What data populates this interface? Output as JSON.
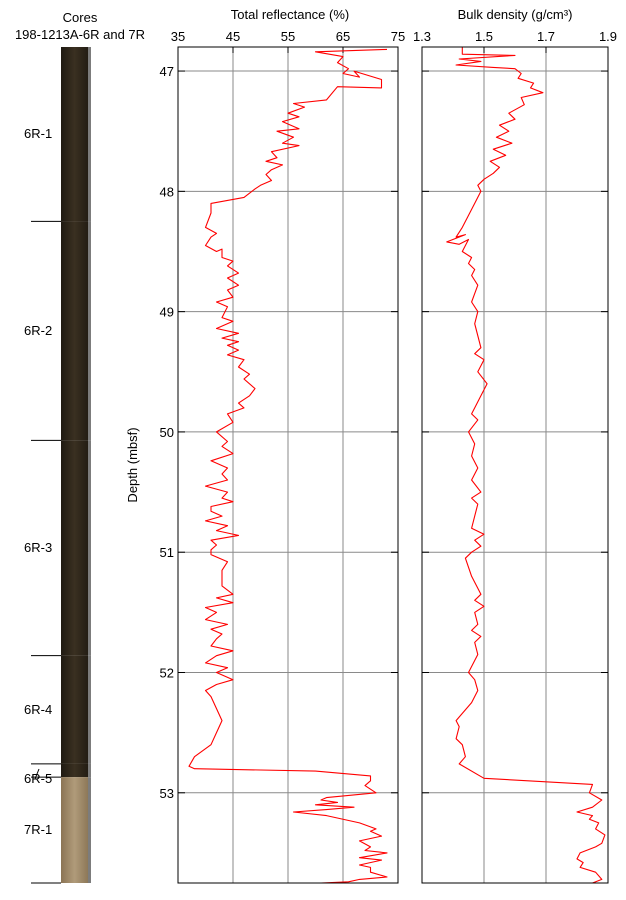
{
  "core_column": {
    "title_line1": "Cores",
    "title_line2": "198-1213A-6R and 7R",
    "sections": [
      {
        "label": "6R-1",
        "top": 46.8,
        "bottom": 48.25
      },
      {
        "label": "6R-2",
        "top": 48.25,
        "bottom": 50.07
      },
      {
        "label": "6R-3",
        "top": 50.07,
        "bottom": 51.86
      },
      {
        "label": "6R-4",
        "top": 51.86,
        "bottom": 52.76
      },
      {
        "label": "6R-5",
        "top": 52.76,
        "bottom": 52.87
      },
      {
        "label": "7R-1",
        "top": 52.87,
        "bottom": 53.75
      }
    ]
  },
  "chart_data": [
    {
      "type": "line",
      "title": "Total reflectance (%)",
      "ylabel": "Depth (mbsf)",
      "xlim": [
        35,
        75
      ],
      "ylim": [
        46.8,
        53.75
      ],
      "xticks": [
        35,
        45,
        55,
        65,
        75
      ],
      "yticks": [
        47,
        48,
        49,
        50,
        51,
        52,
        53
      ],
      "y_inverted": true,
      "grid": true,
      "color": "#ff0000",
      "series": [
        {
          "x": [
            73,
            60,
            65,
            64,
            66,
            65,
            68,
            67,
            72,
            72,
            64,
            62,
            56,
            58,
            55,
            57,
            54,
            57,
            53,
            56,
            54,
            57,
            52,
            53,
            51,
            54,
            52,
            51,
            52,
            50,
            49,
            47,
            41,
            41,
            40,
            42,
            41,
            40,
            42,
            43,
            43,
            45,
            44,
            46,
            44,
            46,
            44,
            45,
            42,
            44,
            43,
            45,
            42,
            46,
            43,
            46,
            44,
            46,
            44,
            47,
            46,
            48,
            47,
            49,
            48,
            46,
            47,
            44,
            45,
            42,
            44,
            43,
            45,
            41,
            44,
            43,
            44,
            40,
            44,
            43,
            45,
            41,
            41,
            43,
            40,
            44,
            42,
            46,
            41,
            42,
            41,
            41,
            44,
            43,
            43,
            45,
            42,
            45,
            40,
            42,
            40,
            44,
            41,
            43,
            42,
            41,
            45,
            42,
            40,
            44,
            42,
            45,
            42,
            40,
            41,
            42,
            43,
            42,
            41,
            38,
            37,
            38,
            60,
            70,
            70,
            69,
            71,
            62,
            61,
            64,
            60,
            67,
            62,
            56,
            62,
            68,
            71,
            70,
            72,
            68,
            70,
            69,
            73,
            68,
            72,
            68,
            70,
            70,
            73,
            68,
            66,
            61
          ],
          "y": [
            46.82,
            46.84,
            46.88,
            46.93,
            46.98,
            47.02,
            47.05,
            47.0,
            47.07,
            47.14,
            47.13,
            47.24,
            47.27,
            47.3,
            47.35,
            47.38,
            47.42,
            47.48,
            47.5,
            47.55,
            47.6,
            47.62,
            47.67,
            47.72,
            47.75,
            47.78,
            47.82,
            47.86,
            47.91,
            47.95,
            47.98,
            48.05,
            48.1,
            48.18,
            48.3,
            48.35,
            48.38,
            48.45,
            48.5,
            48.48,
            48.55,
            48.58,
            48.62,
            48.68,
            48.72,
            48.78,
            48.82,
            48.88,
            48.92,
            48.96,
            49.05,
            49.08,
            49.14,
            49.18,
            49.22,
            49.25,
            49.28,
            49.32,
            49.36,
            49.4,
            49.46,
            49.52,
            49.56,
            49.64,
            49.7,
            49.76,
            49.8,
            49.85,
            49.92,
            50.0,
            50.08,
            50.12,
            50.18,
            50.24,
            50.3,
            50.35,
            50.4,
            50.45,
            50.5,
            50.55,
            50.58,
            50.62,
            50.66,
            50.7,
            50.74,
            50.78,
            50.82,
            50.86,
            50.9,
            50.94,
            50.98,
            51.02,
            51.08,
            51.15,
            51.28,
            51.35,
            51.38,
            51.42,
            51.46,
            51.5,
            51.56,
            51.6,
            51.64,
            51.68,
            51.72,
            51.78,
            51.82,
            51.86,
            51.92,
            51.96,
            52.0,
            52.06,
            52.1,
            52.15,
            52.2,
            52.3,
            52.4,
            52.5,
            52.6,
            52.7,
            52.78,
            52.8,
            52.82,
            52.86,
            52.9,
            52.94,
            53.0,
            53.04,
            53.06,
            53.08,
            53.1,
            53.12,
            53.14,
            53.16,
            53.19,
            53.25,
            53.3,
            53.32,
            53.36,
            53.4,
            53.45,
            53.48,
            53.5,
            53.54,
            53.56,
            53.6,
            53.62,
            53.66,
            53.7,
            53.72,
            53.74,
            53.75
          ]
        }
      ]
    },
    {
      "type": "line",
      "title": "Bulk density (g/cm³)",
      "xlim": [
        1.3,
        1.9
      ],
      "ylim": [
        46.8,
        53.75
      ],
      "xticks": [
        1.3,
        1.5,
        1.7,
        1.9
      ],
      "yticks": [
        47,
        48,
        49,
        50,
        51,
        52,
        53
      ],
      "y_inverted": true,
      "grid": true,
      "color": "#ff0000",
      "series": [
        {
          "x": [
            1.43,
            1.43,
            1.6,
            1.42,
            1.49,
            1.41,
            1.53,
            1.6,
            1.62,
            1.61,
            1.66,
            1.65,
            1.69,
            1.62,
            1.63,
            1.58,
            1.6,
            1.55,
            1.58,
            1.54,
            1.59,
            1.53,
            1.57,
            1.52,
            1.55,
            1.53,
            1.5,
            1.48,
            1.49,
            1.47,
            1.43,
            1.41,
            1.44,
            1.38,
            1.42,
            1.45,
            1.43,
            1.46,
            1.45,
            1.47,
            1.46,
            1.48,
            1.47,
            1.46,
            1.48,
            1.47,
            1.48,
            1.49,
            1.47,
            1.5,
            1.48,
            1.51,
            1.49,
            1.47,
            1.46,
            1.48,
            1.45,
            1.47,
            1.46,
            1.48,
            1.46,
            1.49,
            1.46,
            1.48,
            1.47,
            1.46,
            1.5,
            1.47,
            1.49,
            1.46,
            1.44,
            1.46,
            1.49,
            1.47,
            1.5,
            1.47,
            1.48,
            1.46,
            1.49,
            1.47,
            1.48,
            1.47,
            1.45,
            1.47,
            1.48,
            1.46,
            1.42,
            1.41,
            1.42,
            1.41,
            1.43,
            1.44,
            1.42,
            1.5,
            1.85,
            1.84,
            1.88,
            1.85,
            1.8,
            1.85,
            1.84,
            1.87,
            1.86,
            1.89,
            1.88,
            1.86,
            1.81,
            1.8,
            1.82,
            1.81,
            1.86,
            1.88,
            1.85
          ],
          "y": [
            46.8,
            46.86,
            46.87,
            46.9,
            46.92,
            46.95,
            46.97,
            46.98,
            47.02,
            47.06,
            47.1,
            47.14,
            47.18,
            47.22,
            47.28,
            47.35,
            47.4,
            47.45,
            47.5,
            47.55,
            47.6,
            47.65,
            47.7,
            47.75,
            47.8,
            47.85,
            47.9,
            47.95,
            48.0,
            48.1,
            48.3,
            48.38,
            48.36,
            48.42,
            48.44,
            48.4,
            48.5,
            48.55,
            48.6,
            48.65,
            48.7,
            48.78,
            48.85,
            48.92,
            49.0,
            49.1,
            49.2,
            49.3,
            49.35,
            49.4,
            49.5,
            49.6,
            49.7,
            49.8,
            49.85,
            49.9,
            50.0,
            50.1,
            50.2,
            50.3,
            50.4,
            50.5,
            50.55,
            50.6,
            50.7,
            50.8,
            50.85,
            50.9,
            50.95,
            51.0,
            51.05,
            51.2,
            51.35,
            51.4,
            51.45,
            51.5,
            51.6,
            51.65,
            51.7,
            51.75,
            51.85,
            51.9,
            52.0,
            52.06,
            52.15,
            52.25,
            52.37,
            52.4,
            52.45,
            52.55,
            52.6,
            52.7,
            52.76,
            52.88,
            52.93,
            53.0,
            53.06,
            53.12,
            53.16,
            53.19,
            53.22,
            53.25,
            53.3,
            53.35,
            53.42,
            53.45,
            53.5,
            53.55,
            53.58,
            53.62,
            53.66,
            53.72,
            53.75
          ]
        }
      ]
    }
  ]
}
